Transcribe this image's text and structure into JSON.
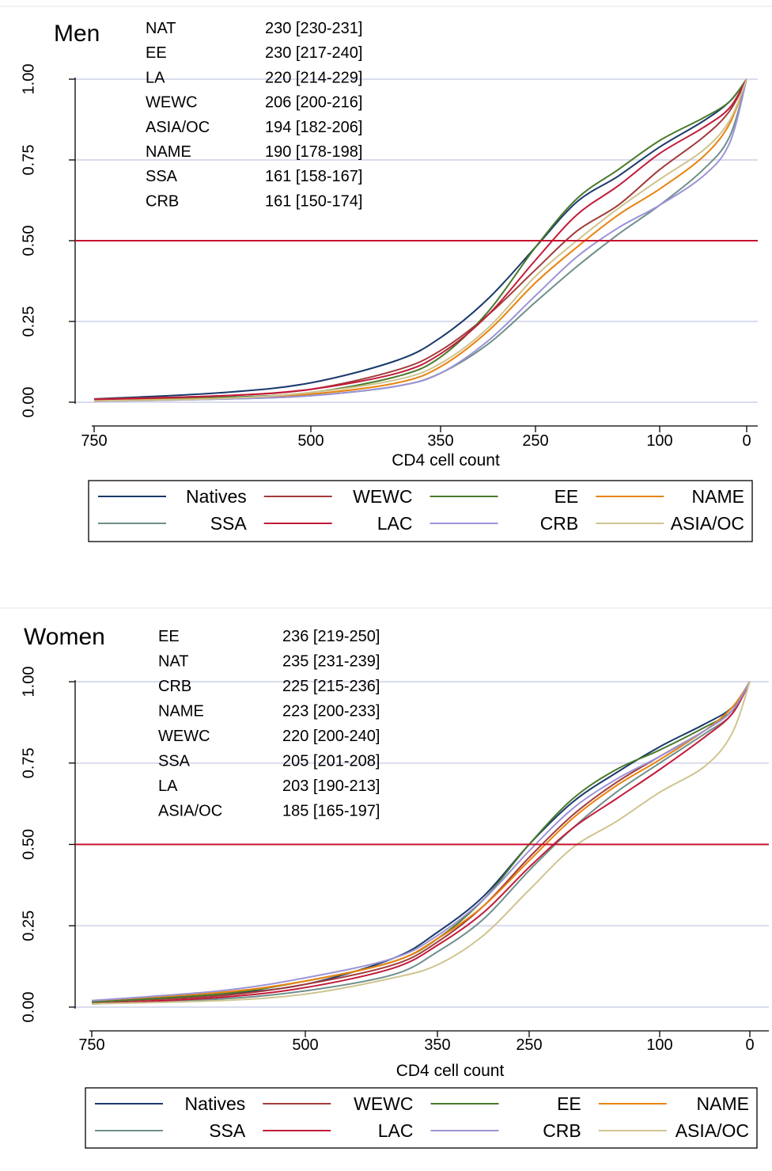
{
  "chart_data": [
    {
      "type": "line",
      "title": "Men",
      "xlabel": "CD4 cell count",
      "ylabel": "",
      "x_reversed": true,
      "xticks": [
        750,
        500,
        350,
        250,
        100,
        0
      ],
      "yticks": [
        "0.00",
        "0.25",
        "0.50",
        "0.75",
        "1.00"
      ],
      "ylim": [
        0,
        1
      ],
      "reference_line_y": 0.5,
      "annotations": [
        {
          "group": "NAT",
          "value": "230 [230-231]"
        },
        {
          "group": "EE",
          "value": "230 [217-240]"
        },
        {
          "group": "LA",
          "value": "220 [214-229]"
        },
        {
          "group": "WEWC",
          "value": "206 [200-216]"
        },
        {
          "group": "ASIA/OC",
          "value": "194 [182-206]"
        },
        {
          "group": "NAME",
          "value": "190 [178-198]"
        },
        {
          "group": "SSA",
          "value": "161 [158-167]"
        },
        {
          "group": "CRB",
          "value": "161 [150-174]"
        }
      ],
      "series": [
        {
          "name": "Natives",
          "color": "#1a3a6b",
          "median": 230,
          "points": [
            [
              750,
              0.01
            ],
            [
              600,
              0.03
            ],
            [
              500,
              0.06
            ],
            [
              400,
              0.13
            ],
            [
              350,
              0.2
            ],
            [
              300,
              0.32
            ],
            [
              250,
              0.48
            ],
            [
              200,
              0.62
            ],
            [
              150,
              0.7
            ],
            [
              100,
              0.79
            ],
            [
              50,
              0.87
            ],
            [
              20,
              0.93
            ],
            [
              0,
              1
            ]
          ]
        },
        {
          "name": "WEWC",
          "color": "#a23b3b",
          "median": 206,
          "points": [
            [
              750,
              0.01
            ],
            [
              600,
              0.02
            ],
            [
              500,
              0.04
            ],
            [
              400,
              0.1
            ],
            [
              350,
              0.16
            ],
            [
              300,
              0.27
            ],
            [
              250,
              0.41
            ],
            [
              200,
              0.53
            ],
            [
              150,
              0.61
            ],
            [
              100,
              0.72
            ],
            [
              50,
              0.82
            ],
            [
              20,
              0.9
            ],
            [
              0,
              1
            ]
          ]
        },
        {
          "name": "EE",
          "color": "#4a7a2c",
          "median": 230,
          "points": [
            [
              750,
              0.005
            ],
            [
              600,
              0.015
            ],
            [
              500,
              0.03
            ],
            [
              400,
              0.08
            ],
            [
              350,
              0.14
            ],
            [
              300,
              0.28
            ],
            [
              250,
              0.48
            ],
            [
              200,
              0.63
            ],
            [
              150,
              0.72
            ],
            [
              100,
              0.81
            ],
            [
              50,
              0.88
            ],
            [
              20,
              0.93
            ],
            [
              0,
              1
            ]
          ]
        },
        {
          "name": "NAME",
          "color": "#e8830f",
          "median": 190,
          "points": [
            [
              750,
              0.005
            ],
            [
              600,
              0.012
            ],
            [
              500,
              0.025
            ],
            [
              400,
              0.06
            ],
            [
              350,
              0.11
            ],
            [
              300,
              0.22
            ],
            [
              250,
              0.37
            ],
            [
              200,
              0.48
            ],
            [
              150,
              0.58
            ],
            [
              100,
              0.66
            ],
            [
              50,
              0.76
            ],
            [
              20,
              0.86
            ],
            [
              0,
              1
            ]
          ]
        },
        {
          "name": "SSA",
          "color": "#6f8f8a",
          "median": 161,
          "points": [
            [
              750,
              0.003
            ],
            [
              600,
              0.01
            ],
            [
              500,
              0.02
            ],
            [
              400,
              0.05
            ],
            [
              350,
              0.09
            ],
            [
              300,
              0.18
            ],
            [
              250,
              0.31
            ],
            [
              200,
              0.42
            ],
            [
              150,
              0.52
            ],
            [
              100,
              0.61
            ],
            [
              50,
              0.72
            ],
            [
              20,
              0.82
            ],
            [
              0,
              1
            ]
          ]
        },
        {
          "name": "LAC",
          "color": "#c21a3a",
          "median": 220,
          "points": [
            [
              750,
              0.008
            ],
            [
              600,
              0.02
            ],
            [
              500,
              0.04
            ],
            [
              400,
              0.09
            ],
            [
              350,
              0.15
            ],
            [
              300,
              0.27
            ],
            [
              250,
              0.44
            ],
            [
              200,
              0.58
            ],
            [
              150,
              0.67
            ],
            [
              100,
              0.77
            ],
            [
              50,
              0.85
            ],
            [
              20,
              0.91
            ],
            [
              0,
              1
            ]
          ]
        },
        {
          "name": "CRB",
          "color": "#9b94d6",
          "median": 161,
          "points": [
            [
              750,
              0.003
            ],
            [
              600,
              0.01
            ],
            [
              500,
              0.02
            ],
            [
              400,
              0.05
            ],
            [
              350,
              0.09
            ],
            [
              300,
              0.19
            ],
            [
              250,
              0.33
            ],
            [
              200,
              0.45
            ],
            [
              150,
              0.54
            ],
            [
              100,
              0.61
            ],
            [
              50,
              0.7
            ],
            [
              20,
              0.8
            ],
            [
              0,
              1
            ]
          ]
        },
        {
          "name": "ASIA/OC",
          "color": "#cfc48f",
          "median": 194,
          "points": [
            [
              750,
              0.004
            ],
            [
              600,
              0.012
            ],
            [
              500,
              0.03
            ],
            [
              400,
              0.07
            ],
            [
              350,
              0.12
            ],
            [
              300,
              0.23
            ],
            [
              250,
              0.39
            ],
            [
              200,
              0.5
            ],
            [
              150,
              0.6
            ],
            [
              100,
              0.69
            ],
            [
              50,
              0.78
            ],
            [
              20,
              0.87
            ],
            [
              0,
              1
            ]
          ]
        }
      ],
      "legend": {
        "placement": "bottom",
        "columns": 4
      }
    },
    {
      "type": "line",
      "title": "Women",
      "xlabel": "CD4 cell count",
      "ylabel": "",
      "x_reversed": true,
      "xticks": [
        750,
        500,
        350,
        250,
        100,
        0
      ],
      "yticks": [
        "0.00",
        "0.25",
        "0.50",
        "0.75",
        "1.00"
      ],
      "ylim": [
        0,
        1
      ],
      "reference_line_y": 0.5,
      "annotations": [
        {
          "group": "EE",
          "value": "236 [219-250]"
        },
        {
          "group": "NAT",
          "value": "235 [231-239]"
        },
        {
          "group": "CRB",
          "value": "225 [215-236]"
        },
        {
          "group": "NAME",
          "value": "223 [200-233]"
        },
        {
          "group": "WEWC",
          "value": "220 [200-240]"
        },
        {
          "group": "SSA",
          "value": "205 [201-208]"
        },
        {
          "group": "LA",
          "value": "203 [190-213]"
        },
        {
          "group": "ASIA/OC",
          "value": "185 [165-197]"
        }
      ],
      "series": [
        {
          "name": "Natives",
          "color": "#1a3a6b",
          "median": 235,
          "points": [
            [
              750,
              0.015
            ],
            [
              600,
              0.04
            ],
            [
              500,
              0.07
            ],
            [
              400,
              0.15
            ],
            [
              350,
              0.23
            ],
            [
              300,
              0.34
            ],
            [
              250,
              0.5
            ],
            [
              200,
              0.63
            ],
            [
              150,
              0.72
            ],
            [
              100,
              0.8
            ],
            [
              50,
              0.87
            ],
            [
              20,
              0.92
            ],
            [
              0,
              1
            ]
          ]
        },
        {
          "name": "WEWC",
          "color": "#a23b3b",
          "median": 220,
          "points": [
            [
              750,
              0.015
            ],
            [
              600,
              0.035
            ],
            [
              500,
              0.07
            ],
            [
              400,
              0.13
            ],
            [
              350,
              0.2
            ],
            [
              300,
              0.31
            ],
            [
              250,
              0.46
            ],
            [
              200,
              0.59
            ],
            [
              150,
              0.69
            ],
            [
              100,
              0.77
            ],
            [
              50,
              0.85
            ],
            [
              20,
              0.91
            ],
            [
              0,
              1
            ]
          ]
        },
        {
          "name": "EE",
          "color": "#4a7a2c",
          "median": 236,
          "points": [
            [
              750,
              0.015
            ],
            [
              600,
              0.04
            ],
            [
              500,
              0.08
            ],
            [
              400,
              0.14
            ],
            [
              350,
              0.21
            ],
            [
              300,
              0.33
            ],
            [
              250,
              0.5
            ],
            [
              200,
              0.64
            ],
            [
              150,
              0.73
            ],
            [
              100,
              0.79
            ],
            [
              50,
              0.86
            ],
            [
              20,
              0.91
            ],
            [
              0,
              1
            ]
          ]
        },
        {
          "name": "NAME",
          "color": "#e8830f",
          "median": 223,
          "points": [
            [
              750,
              0.02
            ],
            [
              600,
              0.045
            ],
            [
              500,
              0.08
            ],
            [
              400,
              0.14
            ],
            [
              350,
              0.21
            ],
            [
              300,
              0.31
            ],
            [
              250,
              0.45
            ],
            [
              200,
              0.58
            ],
            [
              150,
              0.68
            ],
            [
              100,
              0.76
            ],
            [
              50,
              0.85
            ],
            [
              20,
              0.92
            ],
            [
              0,
              1
            ]
          ]
        },
        {
          "name": "SSA",
          "color": "#6f8f8a",
          "median": 205,
          "points": [
            [
              750,
              0.01
            ],
            [
              600,
              0.025
            ],
            [
              500,
              0.05
            ],
            [
              400,
              0.1
            ],
            [
              350,
              0.17
            ],
            [
              300,
              0.27
            ],
            [
              250,
              0.42
            ],
            [
              200,
              0.55
            ],
            [
              150,
              0.66
            ],
            [
              100,
              0.75
            ],
            [
              50,
              0.84
            ],
            [
              20,
              0.9
            ],
            [
              0,
              1
            ]
          ]
        },
        {
          "name": "LAC",
          "color": "#c21a3a",
          "median": 203,
          "points": [
            [
              750,
              0.01
            ],
            [
              600,
              0.03
            ],
            [
              500,
              0.06
            ],
            [
              400,
              0.12
            ],
            [
              350,
              0.19
            ],
            [
              300,
              0.29
            ],
            [
              250,
              0.43
            ],
            [
              200,
              0.55
            ],
            [
              150,
              0.64
            ],
            [
              100,
              0.73
            ],
            [
              50,
              0.83
            ],
            [
              20,
              0.9
            ],
            [
              0,
              1
            ]
          ]
        },
        {
          "name": "CRB",
          "color": "#9b94d6",
          "median": 225,
          "points": [
            [
              750,
              0.02
            ],
            [
              600,
              0.05
            ],
            [
              500,
              0.09
            ],
            [
              400,
              0.15
            ],
            [
              350,
              0.22
            ],
            [
              300,
              0.33
            ],
            [
              250,
              0.48
            ],
            [
              200,
              0.61
            ],
            [
              150,
              0.7
            ],
            [
              100,
              0.77
            ],
            [
              50,
              0.85
            ],
            [
              20,
              0.91
            ],
            [
              0,
              1
            ]
          ]
        },
        {
          "name": "ASIA/OC",
          "color": "#cfc48f",
          "median": 185,
          "points": [
            [
              750,
              0.01
            ],
            [
              600,
              0.02
            ],
            [
              500,
              0.04
            ],
            [
              400,
              0.09
            ],
            [
              350,
              0.13
            ],
            [
              300,
              0.22
            ],
            [
              250,
              0.36
            ],
            [
              200,
              0.49
            ],
            [
              150,
              0.57
            ],
            [
              100,
              0.66
            ],
            [
              50,
              0.74
            ],
            [
              20,
              0.84
            ],
            [
              0,
              1
            ]
          ]
        }
      ],
      "legend": {
        "placement": "bottom",
        "columns": 4
      }
    }
  ]
}
